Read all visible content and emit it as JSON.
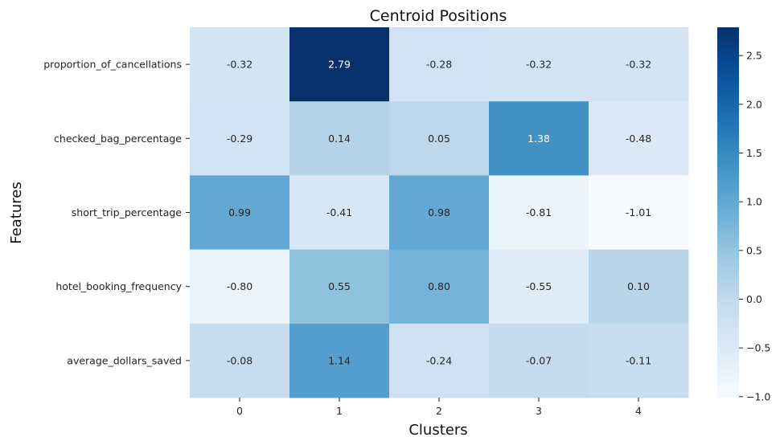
{
  "chart_data": {
    "type": "heatmap",
    "title": "Centroid Positions",
    "xlabel": "Clusters",
    "ylabel": "Features",
    "x_categories": [
      "0",
      "1",
      "2",
      "3",
      "4"
    ],
    "y_categories": [
      "proportion_of_cancellations",
      "checked_bag_percentage",
      "short_trip_percentage",
      "hotel_booking_frequency",
      "average_dollars_saved"
    ],
    "values": [
      [
        -0.32,
        2.79,
        -0.28,
        -0.32,
        -0.32
      ],
      [
        -0.29,
        0.14,
        0.05,
        1.38,
        -0.48
      ],
      [
        0.99,
        -0.41,
        0.98,
        -0.81,
        -1.01
      ],
      [
        -0.8,
        0.55,
        0.8,
        -0.55,
        0.1
      ],
      [
        -0.08,
        1.14,
        -0.24,
        -0.07,
        -0.11
      ]
    ],
    "cell_labels": [
      [
        "-0.32",
        "2.79",
        "-0.28",
        "-0.32",
        "-0.32"
      ],
      [
        "-0.29",
        "0.14",
        "0.05",
        "1.38",
        "-0.48"
      ],
      [
        "0.99",
        "-0.41",
        "0.98",
        "-0.81",
        "-1.01"
      ],
      [
        "-0.80",
        "0.55",
        "0.80",
        "-0.55",
        "0.10"
      ],
      [
        "-0.08",
        "1.14",
        "-0.24",
        "-0.07",
        "-0.11"
      ]
    ],
    "colormap": "Blues",
    "color_range": [
      -1.01,
      2.79
    ],
    "colorbar_ticks": [
      -1.0,
      -0.5,
      0.0,
      0.5,
      1.0,
      1.5,
      2.0,
      2.5
    ],
    "colorbar_tick_labels": [
      "−1.0",
      "−0.5",
      "0.0",
      "0.5",
      "1.0",
      "1.5",
      "2.0",
      "2.5"
    ]
  }
}
